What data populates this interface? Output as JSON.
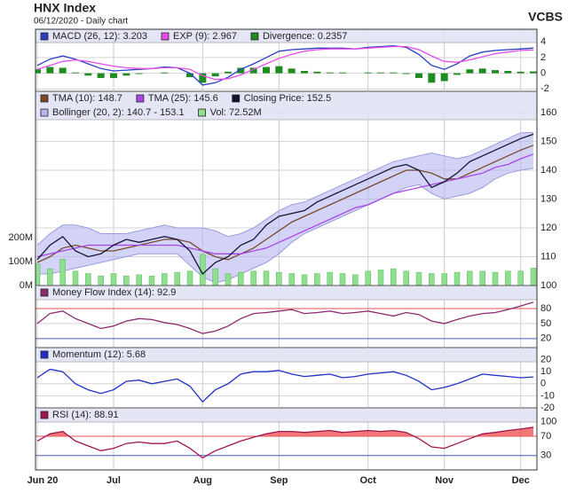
{
  "header": {
    "title": "HNX Index",
    "subtitle": "06/12/2020 - Daily chart",
    "brand": "VCBS"
  },
  "chart_data": [
    {
      "type": "line",
      "ylim": [
        -2.3,
        5.6
      ],
      "yticks": [
        -2,
        0,
        2,
        4
      ],
      "grid": true,
      "series": [
        {
          "name": "MACD (26, 12): 3.203",
          "color": "#2a3fc8",
          "kind": "line",
          "values": [
            1.0,
            1.8,
            2.2,
            1.8,
            1.2,
            0.6,
            0.3,
            0.4,
            0.5,
            0.6,
            0.8,
            0.7,
            0,
            -1.5,
            -1.2,
            -0.5,
            0.5,
            1.2,
            2.0,
            2.8,
            3.0,
            3.1,
            3.2,
            3.2,
            3.2,
            3.1,
            3.3,
            3.4,
            3.5,
            3.3,
            2.4,
            1.0,
            0.5,
            1.2,
            2.2,
            2.7,
            2.9,
            3.0,
            3.1,
            3.203
          ]
        },
        {
          "name": "EXP (9): 2.967",
          "color": "#e84ce8",
          "kind": "line",
          "values": [
            0.5,
            1.0,
            1.5,
            1.7,
            1.5,
            1.2,
            0.9,
            0.7,
            0.6,
            0.6,
            0.7,
            0.7,
            0.5,
            -0.3,
            -0.8,
            -0.7,
            -0.2,
            0.5,
            1.2,
            1.9,
            2.4,
            2.8,
            3.0,
            3.1,
            3.1,
            3.1,
            3.2,
            3.3,
            3.4,
            3.4,
            3.0,
            2.2,
            1.5,
            1.4,
            1.7,
            2.1,
            2.5,
            2.7,
            2.9,
            2.967
          ]
        },
        {
          "name": "Divergence: 0.2357",
          "color": "#1e8c1e",
          "kind": "bar",
          "values": [
            0.5,
            0.8,
            0.7,
            0.1,
            -0.3,
            -0.6,
            -0.6,
            -0.3,
            -0.1,
            0,
            0.1,
            0,
            -0.5,
            -1.2,
            -0.4,
            0.2,
            0.7,
            0.7,
            0.8,
            0.9,
            0.6,
            0.3,
            0.2,
            0.1,
            0.1,
            0,
            0.1,
            0.1,
            0.1,
            -0.1,
            -0.6,
            -1.2,
            -1.0,
            -0.2,
            0.5,
            0.6,
            0.4,
            0.3,
            0.2,
            0.2357
          ]
        }
      ]
    },
    {
      "type": "line",
      "ylim": [
        100,
        167.4
      ],
      "yticks": [
        100,
        110,
        120,
        130,
        140,
        150,
        160
      ],
      "grid": true,
      "y2lim": [
        0,
        811
      ],
      "y2ticks": [
        {
          "value": 0,
          "label": "0M"
        },
        {
          "value": 100,
          "label": "100M"
        },
        {
          "value": 200,
          "label": "200M"
        }
      ],
      "series": [
        {
          "name": "TMA (10): 148.7",
          "color": "#7a4a2a",
          "kind": "line",
          "values": [
            108,
            110,
            113,
            114,
            113,
            112,
            112,
            113,
            114,
            115,
            116,
            116,
            115,
            112,
            110,
            109,
            111,
            113,
            116,
            119,
            122,
            124,
            126,
            128,
            130,
            132,
            134,
            136,
            138,
            140,
            140,
            139,
            137,
            137,
            139,
            141,
            143,
            145,
            147,
            148.7
          ]
        },
        {
          "name": "TMA (25): 145.6",
          "color": "#a846e8",
          "kind": "line",
          "values": [
            110,
            111,
            112,
            113,
            114,
            114,
            114,
            114,
            114,
            114,
            114,
            114,
            113,
            112,
            111,
            111,
            111,
            112,
            113,
            115,
            117,
            119,
            121,
            123,
            125,
            127,
            128,
            130,
            132,
            133,
            134,
            135,
            136,
            137,
            138,
            139,
            141,
            142,
            144,
            145.6
          ]
        },
        {
          "name": "Closing Price: 152.5",
          "color": "#141432",
          "kind": "line",
          "values": [
            109,
            114,
            117,
            112,
            110,
            111,
            114,
            116,
            115,
            116,
            117,
            116,
            112,
            104,
            108,
            110,
            114,
            116,
            121,
            124,
            125,
            126,
            129,
            131,
            133,
            135,
            137,
            139,
            141,
            142,
            140,
            134,
            136,
            139,
            143,
            145,
            147,
            149,
            151,
            152.5
          ]
        },
        {
          "name": "Bollinger (20, 2): 140.7 - 153.1",
          "color": "#b4b6f0",
          "kind": "band",
          "upper": [
            114,
            118,
            121,
            121,
            120,
            118,
            118,
            118,
            119,
            120,
            121,
            120,
            120,
            120,
            119,
            117,
            118,
            120,
            123,
            126,
            128,
            129,
            131,
            133,
            135,
            137,
            139,
            141,
            143,
            144,
            145,
            146,
            145,
            144,
            145,
            147,
            149,
            151,
            153,
            153.1
          ],
          "lower": [
            104,
            104,
            105,
            106,
            107,
            108,
            109,
            110,
            111,
            111,
            111,
            111,
            107,
            103,
            101,
            102,
            104,
            106,
            108,
            111,
            115,
            118,
            120,
            122,
            124,
            126,
            128,
            130,
            132,
            134,
            135,
            132,
            130,
            131,
            132,
            134,
            137,
            139,
            140,
            140.7
          ]
        },
        {
          "name": "Vol: 72.52M",
          "color": "#8ee08e",
          "kind": "bar",
          "axis": "y2",
          "values": [
            90,
            70,
            110,
            60,
            50,
            40,
            50,
            40,
            45,
            40,
            50,
            55,
            60,
            130,
            70,
            50,
            55,
            60,
            60,
            55,
            50,
            45,
            50,
            55,
            50,
            45,
            60,
            65,
            70,
            60,
            55,
            50,
            50,
            55,
            60,
            60,
            55,
            60,
            60,
            72.52
          ]
        }
      ]
    },
    {
      "type": "line",
      "ylim": [
        2,
        126
      ],
      "yticks": [
        20,
        50,
        80
      ],
      "grid": true,
      "ref_lines": [
        {
          "value": 80,
          "color": "#e05050"
        },
        {
          "value": 20,
          "color": "#5060d0"
        }
      ],
      "series": [
        {
          "name": "Money Flow Index (14): 92.9",
          "color": "#8e2a70",
          "kind": "line",
          "values": [
            50,
            70,
            75,
            60,
            50,
            40,
            45,
            55,
            60,
            58,
            52,
            48,
            40,
            30,
            35,
            45,
            60,
            70,
            72,
            75,
            78,
            70,
            72,
            75,
            70,
            72,
            75,
            70,
            65,
            72,
            68,
            55,
            50,
            58,
            65,
            70,
            72,
            78,
            85,
            92.9
          ]
        }
      ]
    },
    {
      "type": "line",
      "ylim": [
        -20,
        30
      ],
      "yticks": [
        -20,
        -10,
        0,
        10,
        20
      ],
      "grid": true,
      "series": [
        {
          "name": "Momentum (12): 5.68",
          "color": "#2030c8",
          "kind": "line",
          "values": [
            5,
            12,
            10,
            0,
            -5,
            -8,
            -5,
            2,
            3,
            0,
            2,
            4,
            -2,
            -15,
            -5,
            0,
            8,
            10,
            10,
            11,
            8,
            6,
            7,
            8,
            5,
            6,
            8,
            9,
            10,
            7,
            2,
            -5,
            -3,
            0,
            4,
            8,
            7,
            6,
            5,
            5.68
          ]
        }
      ]
    },
    {
      "type": "line",
      "ylim": [
        0,
        129
      ],
      "yticks": [
        30,
        70,
        100
      ],
      "grid": true,
      "ref_lines": [
        {
          "value": 70,
          "color": "#e05050"
        },
        {
          "value": 30,
          "color": "#5060d0"
        }
      ],
      "fill_above": {
        "value": 70,
        "color": "#f06060"
      },
      "categories": [
        "Jun 20",
        null,
        null,
        null,
        null,
        null,
        "Jul",
        null,
        null,
        null,
        null,
        null,
        null,
        "Aug",
        null,
        null,
        null,
        null,
        null,
        "Sep",
        null,
        null,
        null,
        null,
        null,
        null,
        "Oct",
        null,
        null,
        null,
        null,
        null,
        "Nov",
        null,
        null,
        null,
        null,
        null,
        "Dec",
        null
      ],
      "series": [
        {
          "name": "RSI (14): 88.91",
          "color": "#a01450",
          "kind": "line",
          "values": [
            60,
            75,
            80,
            60,
            50,
            40,
            45,
            55,
            58,
            55,
            55,
            60,
            45,
            25,
            40,
            50,
            60,
            68,
            75,
            80,
            80,
            78,
            80,
            82,
            78,
            80,
            82,
            80,
            82,
            78,
            65,
            48,
            45,
            55,
            65,
            75,
            78,
            82,
            85,
            88.91
          ]
        }
      ]
    }
  ]
}
